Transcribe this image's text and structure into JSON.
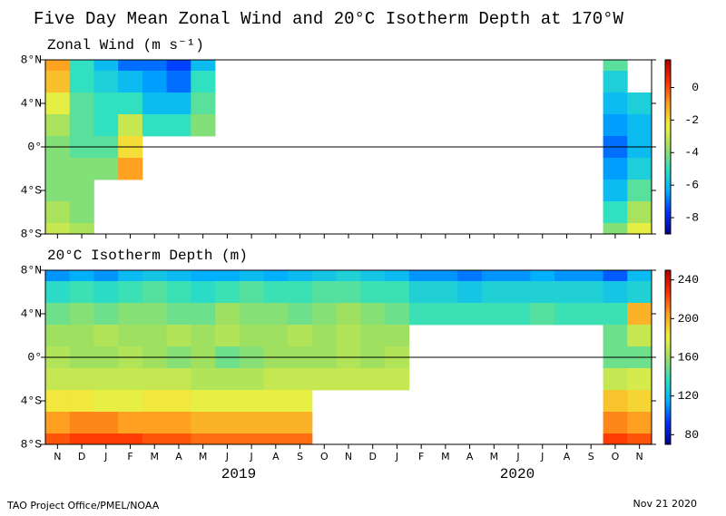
{
  "title": "Five Day Mean Zonal Wind and 20°C Isotherm Depth at 170°W",
  "footer_left": "TAO Project Office/PMEL/NOAA",
  "footer_right": "Nov 21 2020",
  "chart_data": [
    {
      "type": "heatmap",
      "title": "Zonal Wind (m s⁻¹)",
      "y": [
        8,
        6,
        4,
        2,
        0,
        -2,
        -4,
        -6,
        -8
      ],
      "ylim": [
        -8,
        8
      ],
      "yticks": [
        {
          "value": 8,
          "label": "8°N"
        },
        {
          "value": 4,
          "label": "4°N"
        },
        {
          "value": 0,
          "label": "0°"
        },
        {
          "value": -4,
          "label": "4°S"
        },
        {
          "value": -8,
          "label": "8°S"
        }
      ],
      "clim": [
        -9,
        1.7
      ],
      "cticks": [
        0,
        -2,
        -4,
        -6,
        -8
      ],
      "colormap": [
        "#00008b",
        "#0030ff",
        "#00b0ff",
        "#30e0c0",
        "#a0e060",
        "#f0f040",
        "#ffa020",
        "#ff3000",
        "#b00000"
      ],
      "values": [
        [
          -1,
          -5,
          -6,
          -7,
          -7,
          -7.5,
          -6,
          null,
          null,
          null,
          null,
          null,
          null,
          null,
          null,
          null,
          null,
          null,
          null,
          null,
          null,
          null,
          null,
          -4.5,
          null
        ],
        [
          -1.5,
          -5,
          -5.5,
          -6,
          -6.5,
          -7,
          -5,
          null,
          null,
          null,
          null,
          null,
          null,
          null,
          null,
          null,
          null,
          null,
          null,
          null,
          null,
          null,
          null,
          -5.5,
          null
        ],
        [
          -2.5,
          -4.5,
          -5,
          -5,
          -6,
          -6,
          -4.5,
          null,
          null,
          null,
          null,
          null,
          null,
          null,
          null,
          null,
          null,
          null,
          null,
          null,
          null,
          null,
          null,
          -6,
          -5.5
        ],
        [
          -3.5,
          -4.5,
          -5,
          -3,
          -5,
          -5,
          -4,
          null,
          null,
          null,
          null,
          null,
          null,
          null,
          null,
          null,
          null,
          null,
          null,
          null,
          null,
          null,
          null,
          -6.5,
          -6
        ],
        [
          -4,
          -4.5,
          -4.5,
          -2,
          null,
          null,
          null,
          null,
          null,
          null,
          null,
          null,
          null,
          null,
          null,
          null,
          null,
          null,
          null,
          null,
          null,
          null,
          null,
          -7,
          -6
        ],
        [
          -4,
          -4,
          -4,
          -1,
          null,
          null,
          null,
          null,
          null,
          null,
          null,
          null,
          null,
          null,
          null,
          null,
          null,
          null,
          null,
          null,
          null,
          null,
          null,
          -6.5,
          -5.5
        ],
        [
          -4,
          -4,
          null,
          null,
          null,
          null,
          null,
          null,
          null,
          null,
          null,
          null,
          null,
          null,
          null,
          null,
          null,
          null,
          null,
          null,
          null,
          null,
          null,
          -6,
          -4.5
        ],
        [
          -3.5,
          -4,
          null,
          null,
          null,
          null,
          null,
          null,
          null,
          null,
          null,
          null,
          null,
          null,
          null,
          null,
          null,
          null,
          null,
          null,
          null,
          null,
          null,
          -5,
          -3.5
        ],
        [
          -3,
          -3.5,
          null,
          null,
          null,
          null,
          null,
          null,
          null,
          null,
          null,
          null,
          null,
          null,
          null,
          null,
          null,
          null,
          null,
          null,
          null,
          null,
          null,
          -4,
          -2.5
        ]
      ]
    },
    {
      "type": "heatmap",
      "title": "20°C Isotherm Depth (m)",
      "categories": [
        "N",
        "D",
        "J",
        "F",
        "M",
        "A",
        "M",
        "J",
        "J",
        "A",
        "S",
        "O",
        "N",
        "D",
        "J",
        "F",
        "M",
        "A",
        "M",
        "J",
        "J",
        "A",
        "S",
        "O",
        "N"
      ],
      "years": [
        "2019",
        "2020"
      ],
      "y": [
        8,
        6,
        4,
        2,
        0,
        -2,
        -4,
        -6,
        -8
      ],
      "ylim": [
        -8,
        8
      ],
      "yticks": [
        {
          "value": 8,
          "label": "8°N"
        },
        {
          "value": 4,
          "label": "4°N"
        },
        {
          "value": 0,
          "label": "0°"
        },
        {
          "value": -4,
          "label": "4°S"
        },
        {
          "value": -8,
          "label": "8°S"
        }
      ],
      "clim": [
        70,
        250
      ],
      "cticks": [
        240,
        200,
        160,
        120,
        80
      ],
      "colormap": [
        "#00008b",
        "#0030ff",
        "#00b0ff",
        "#30e0c0",
        "#a0e060",
        "#f0f040",
        "#ffa020",
        "#ff3000",
        "#b00000"
      ],
      "values": [
        [
          110,
          115,
          110,
          120,
          125,
          120,
          115,
          115,
          120,
          115,
          120,
          125,
          130,
          125,
          120,
          110,
          110,
          105,
          110,
          110,
          115,
          110,
          110,
          100,
          120
        ],
        [
          135,
          140,
          135,
          140,
          145,
          140,
          135,
          140,
          145,
          140,
          140,
          145,
          145,
          140,
          140,
          130,
          130,
          125,
          130,
          130,
          130,
          130,
          130,
          125,
          130
        ],
        [
          150,
          155,
          150,
          155,
          155,
          150,
          150,
          160,
          155,
          155,
          150,
          155,
          160,
          155,
          150,
          140,
          140,
          140,
          140,
          140,
          145,
          140,
          140,
          140,
          200
        ],
        [
          160,
          160,
          165,
          160,
          160,
          165,
          160,
          165,
          160,
          160,
          165,
          160,
          165,
          160,
          160,
          null,
          null,
          null,
          null,
          null,
          null,
          null,
          null,
          150,
          170
        ],
        [
          165,
          160,
          160,
          165,
          160,
          155,
          160,
          150,
          155,
          160,
          160,
          160,
          165,
          160,
          165,
          null,
          null,
          null,
          null,
          null,
          null,
          null,
          null,
          150,
          150
        ],
        [
          170,
          170,
          170,
          170,
          170,
          170,
          165,
          165,
          165,
          170,
          170,
          170,
          170,
          170,
          170,
          null,
          null,
          null,
          null,
          null,
          null,
          null,
          null,
          170,
          175
        ],
        [
          185,
          185,
          180,
          180,
          185,
          185,
          180,
          180,
          180,
          180,
          180,
          null,
          null,
          null,
          null,
          null,
          null,
          null,
          null,
          null,
          null,
          null,
          null,
          195,
          190
        ],
        [
          205,
          210,
          210,
          205,
          205,
          205,
          200,
          200,
          200,
          200,
          200,
          null,
          null,
          null,
          null,
          null,
          null,
          null,
          null,
          null,
          null,
          null,
          null,
          210,
          205
        ],
        [
          220,
          225,
          225,
          225,
          220,
          220,
          215,
          215,
          215,
          215,
          215,
          null,
          null,
          null,
          null,
          null,
          null,
          null,
          null,
          null,
          null,
          null,
          null,
          225,
          220
        ]
      ]
    }
  ]
}
